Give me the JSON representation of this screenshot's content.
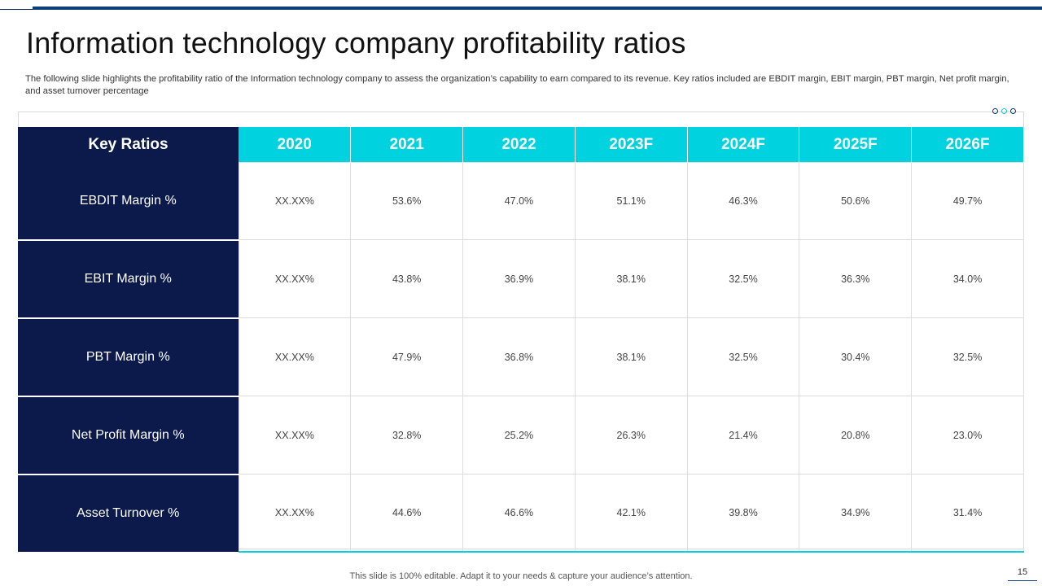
{
  "slide": {
    "title": "Information technology company profitability ratios",
    "subtitle": "The following slide highlights the profitability ratio of the Information technology company to assess the organization’s capability to earn compared to its revenue. Key ratios included are EBDIT margin, EBIT margin, PBT margin, Net profit margin, and asset turnover percentage",
    "footer": "This slide is 100% editable. Adapt it to your needs & capture your audience’s attention.",
    "page_number": "15"
  },
  "table": {
    "header": [
      "Key Ratios",
      "2020",
      "2021",
      "2022",
      "2023F",
      "2024F",
      "2025F",
      "2026F"
    ],
    "rows": [
      {
        "label": "EBDIT Margin %",
        "values": [
          "XX.XX%",
          "53.6%",
          "47.0%",
          "51.1%",
          "46.3%",
          "50.6%",
          "49.7%"
        ]
      },
      {
        "label": "EBIT Margin %",
        "values": [
          "XX.XX%",
          "43.8%",
          "36.9%",
          "38.1%",
          "32.5%",
          "36.3%",
          "34.0%"
        ]
      },
      {
        "label": "PBT Margin %",
        "values": [
          "XX.XX%",
          "47.9%",
          "36.8%",
          "38.1%",
          "32.5%",
          "30.4%",
          "32.5%"
        ]
      },
      {
        "label": "Net Profit Margin %",
        "values": [
          "XX.XX%",
          "32.8%",
          "25.2%",
          "26.3%",
          "21.4%",
          "20.8%",
          "23.0%"
        ]
      },
      {
        "label": "Asset Turnover  %",
        "values": [
          "XX.XX%",
          "44.6%",
          "46.6%",
          "42.1%",
          "39.8%",
          "34.9%",
          "31.4%"
        ]
      }
    ]
  },
  "colors": {
    "navy": "#0b1a4a",
    "cyan": "#00d2df",
    "accent_line": "#0b3d78"
  }
}
